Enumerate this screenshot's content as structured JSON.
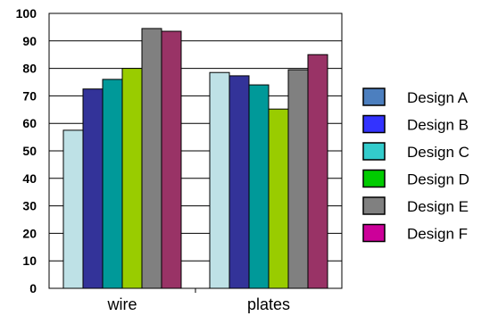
{
  "chart_data": {
    "type": "bar",
    "categories": [
      "wire",
      "plates"
    ],
    "series": [
      {
        "name": "Design A",
        "values": [
          57.5,
          78.5
        ],
        "bar_color": "#BEE1E6",
        "legend_color": "#4C7FBF"
      },
      {
        "name": "Design B",
        "values": [
          72.5,
          77.3
        ],
        "bar_color": "#333399",
        "legend_color": "#3333FF"
      },
      {
        "name": "Design C",
        "values": [
          76.0,
          74.0
        ],
        "bar_color": "#009999",
        "legend_color": "#33CCCC"
      },
      {
        "name": "Design D",
        "values": [
          80.0,
          65.2
        ],
        "bar_color": "#99CC00",
        "legend_color": "#00CC00"
      },
      {
        "name": "Design E",
        "values": [
          94.5,
          79.5
        ],
        "bar_color": "#808080",
        "legend_color": "#808080"
      },
      {
        "name": "Design F",
        "values": [
          93.5,
          85.0
        ],
        "bar_color": "#993366",
        "legend_color": "#CC0099"
      }
    ],
    "y_ticks": [
      "0",
      "10",
      "20",
      "30",
      "40",
      "50",
      "60",
      "70",
      "80",
      "90",
      "100"
    ],
    "ylim": [
      0,
      100
    ],
    "grid": true,
    "legend_position": "right",
    "title": "",
    "xlabel": "",
    "ylabel": ""
  }
}
